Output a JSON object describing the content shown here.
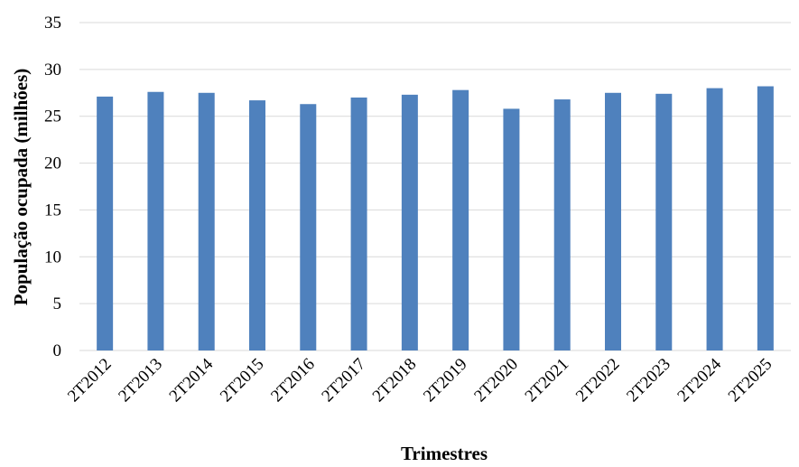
{
  "chart_data": {
    "type": "bar",
    "categories": [
      "2T2012",
      "2T2013",
      "2T2014",
      "2T2015",
      "2T2016",
      "2T2017",
      "2T2018",
      "2T2019",
      "2T2020",
      "2T2021",
      "2T2022",
      "2T2023",
      "2T2024",
      "2T2025"
    ],
    "series": [
      {
        "values": [
          27.1,
          27.6,
          27.5,
          26.7,
          26.3,
          27.0,
          27.3,
          27.8,
          25.8,
          26.8,
          27.5,
          27.4,
          28.0,
          28.2
        ],
        "color": "#4f81bd"
      }
    ],
    "xlabel": "Trimestres",
    "ylabel": "População ocupada (milhões)",
    "ylim": [
      0,
      35
    ],
    "yticks": [
      0,
      5,
      10,
      15,
      20,
      25,
      30,
      35
    ],
    "grid": true,
    "legend": "none"
  }
}
